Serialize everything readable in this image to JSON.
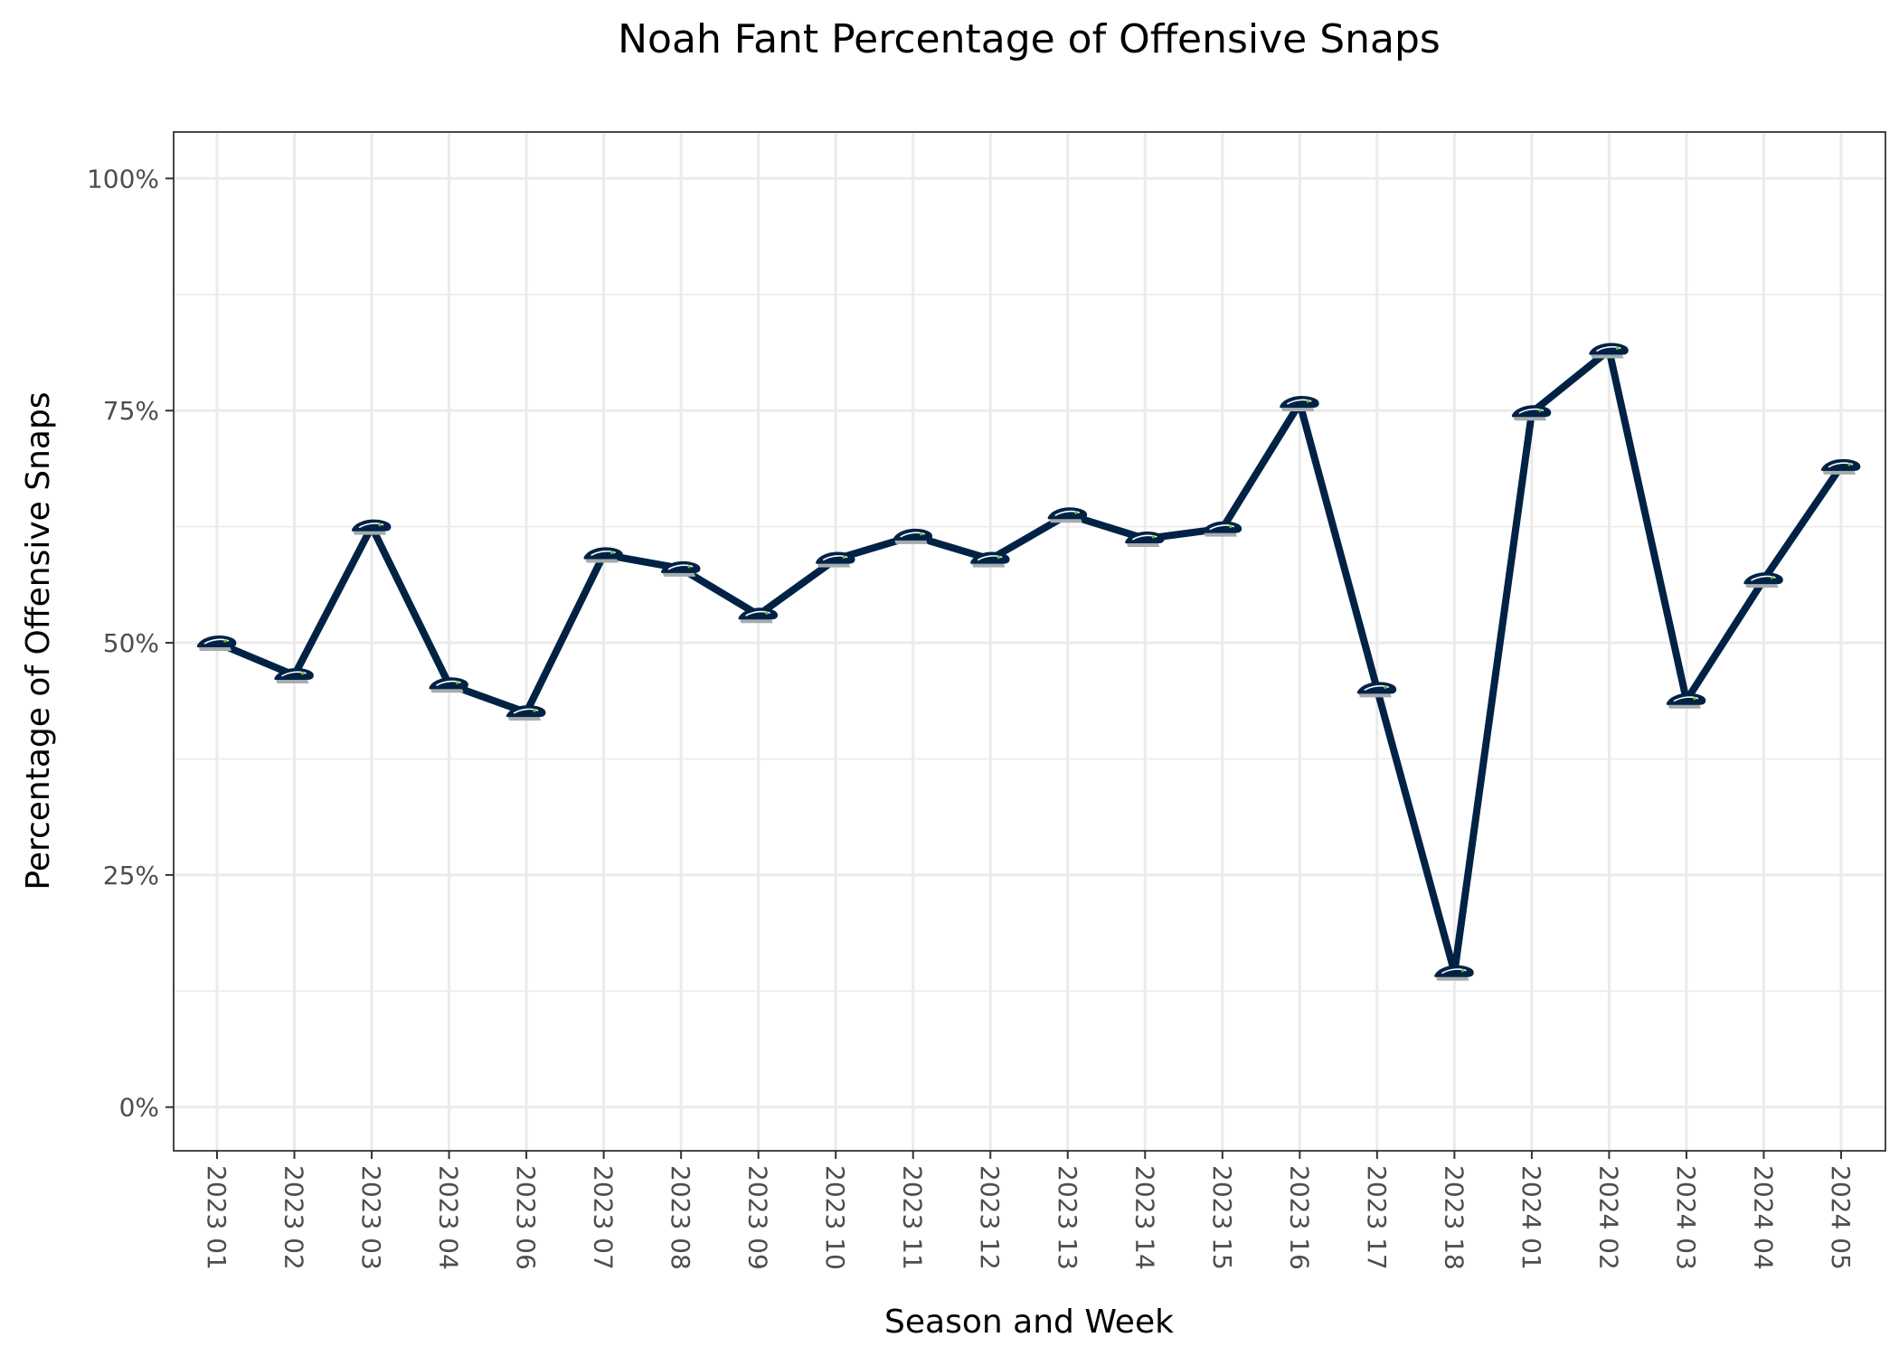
{
  "chart_data": {
    "type": "line",
    "title": "Noah Fant Percentage of Offensive Snaps",
    "xlabel": "Season and Week",
    "ylabel": "Percentage of Offensive Snaps",
    "categories": [
      "2023 01",
      "2023 02",
      "2023 03",
      "2023 04",
      "2023 06",
      "2023 07",
      "2023 08",
      "2023 09",
      "2023 10",
      "2023 11",
      "2023 12",
      "2023 13",
      "2023 14",
      "2023 15",
      "2023 16",
      "2023 17",
      "2023 18",
      "2024 01",
      "2024 02",
      "2024 03",
      "2024 04",
      "2024 05"
    ],
    "values": [
      50,
      46.5,
      62.5,
      45.5,
      42.5,
      59.5,
      58,
      53,
      59,
      61.5,
      59,
      63.8,
      61.2,
      62.3,
      75.8,
      45,
      14.5,
      74.8,
      81.5,
      43.8,
      56.8,
      69
    ],
    "ylim": [
      -4.7,
      105
    ],
    "yticks": [
      0,
      25,
      50,
      75,
      100
    ],
    "ytick_labels": [
      "0%",
      "25%",
      "50%",
      "75%",
      "100%"
    ],
    "grid": true,
    "legend": "none",
    "marker_icon": "seahawks-logo-icon",
    "colors": {
      "line": "#002244",
      "marker_gray": "#a5acaf",
      "marker_green": "#69be28"
    }
  }
}
